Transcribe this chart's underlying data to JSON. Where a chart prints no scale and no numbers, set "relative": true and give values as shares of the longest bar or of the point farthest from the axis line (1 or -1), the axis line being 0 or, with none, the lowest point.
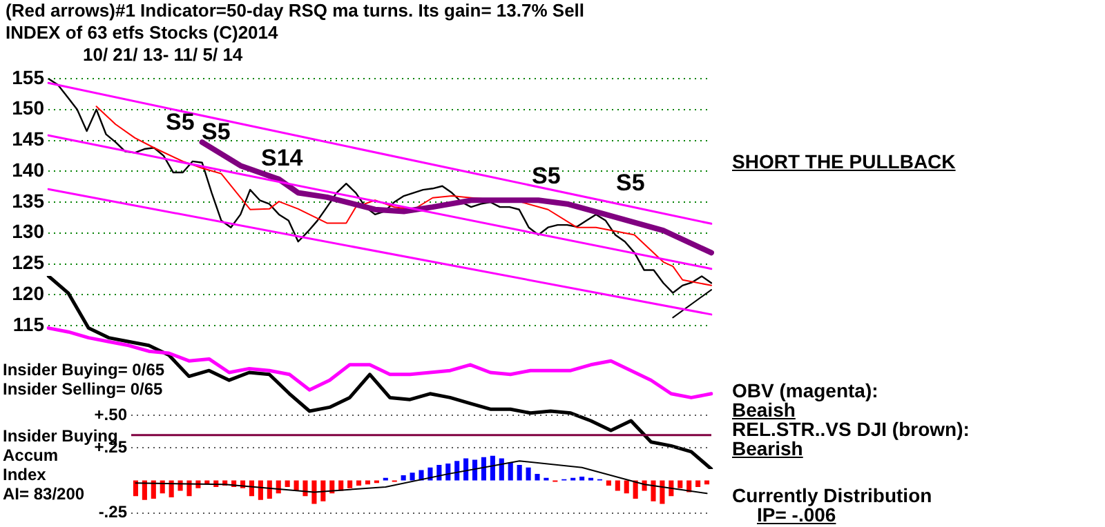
{
  "chart_data": [
    {
      "type": "line",
      "title": "(Red arrows)#1 Indicator=50-day RSQ ma turns. Its gain= 13.7% Sell",
      "subtitle": "INDEX of  63 etfs Stocks  (C)2014",
      "annotations": [
        "10/ 21/ 13- 11/ 5/ 14",
        "S5",
        "S5",
        "S14",
        "S5",
        "S5",
        "SHORT THE PULLBACK"
      ],
      "categories": [
        null,
        null,
        null,
        null,
        null,
        null,
        null,
        null,
        null,
        null,
        null,
        null,
        null,
        null,
        null,
        null,
        null,
        null,
        null,
        null,
        null,
        null,
        null,
        null,
        null,
        null,
        null,
        null,
        null,
        null,
        null,
        null,
        null,
        null,
        null,
        null,
        null,
        null,
        null,
        null,
        null,
        null,
        null,
        null,
        null,
        null,
        null,
        null,
        null,
        null,
        null,
        null,
        null,
        null,
        null,
        null,
        null,
        null,
        null,
        null,
        null,
        null,
        null,
        null,
        null,
        null,
        null,
        null,
        null,
        null
      ],
      "series": [
        {
          "color": "#ff00ff",
          "values": [
            154.3,
            null,
            null,
            null,
            null,
            null,
            null,
            null,
            null,
            null,
            null,
            null,
            null,
            null,
            null,
            null,
            null,
            null,
            null,
            null,
            null,
            null,
            null,
            null,
            null,
            null,
            null,
            null,
            null,
            null,
            null,
            null,
            null,
            null,
            null,
            null,
            null,
            null,
            null,
            null,
            null,
            null,
            null,
            null,
            null,
            null,
            null,
            null,
            null,
            null,
            null,
            null,
            null,
            null,
            null,
            null,
            null,
            null,
            null,
            null,
            null,
            null,
            null,
            null,
            null,
            null,
            null,
            null,
            null,
            131.5
          ]
        },
        {
          "color": "#ff00ff",
          "values": [
            145.8,
            null,
            null,
            null,
            null,
            null,
            null,
            null,
            null,
            null,
            null,
            null,
            null,
            null,
            null,
            null,
            null,
            null,
            null,
            null,
            null,
            null,
            null,
            null,
            null,
            null,
            null,
            null,
            null,
            null,
            null,
            null,
            null,
            null,
            null,
            null,
            null,
            null,
            null,
            null,
            null,
            null,
            null,
            null,
            null,
            null,
            null,
            null,
            null,
            null,
            null,
            null,
            null,
            null,
            null,
            null,
            null,
            null,
            null,
            null,
            null,
            null,
            null,
            null,
            null,
            null,
            null,
            null,
            null,
            124.2
          ]
        },
        {
          "color": "#ff00ff",
          "values": [
            137.1,
            null,
            null,
            null,
            null,
            null,
            null,
            null,
            null,
            null,
            null,
            null,
            null,
            null,
            null,
            null,
            null,
            null,
            null,
            null,
            null,
            null,
            null,
            null,
            null,
            null,
            null,
            null,
            null,
            null,
            null,
            null,
            null,
            null,
            null,
            null,
            null,
            null,
            null,
            null,
            null,
            null,
            null,
            null,
            null,
            null,
            null,
            null,
            null,
            null,
            null,
            null,
            null,
            null,
            null,
            null,
            null,
            null,
            null,
            null,
            null,
            null,
            null,
            null,
            null,
            null,
            null,
            null,
            null,
            116.8
          ]
        },
        {
          "color": "#800080",
          "values": [
            null,
            null,
            null,
            null,
            null,
            null,
            null,
            null,
            null,
            null,
            null,
            null,
            null,
            null,
            null,
            null,
            144.7,
            null,
            null,
            null,
            140.9,
            null,
            null,
            null,
            138.7,
            null,
            136.5,
            null,
            null,
            135.8,
            null,
            null,
            null,
            null,
            133.8,
            null,
            null,
            133.5,
            null,
            null,
            134.2,
            null,
            null,
            null,
            135.3,
            null,
            null,
            null,
            null,
            null,
            null,
            135.3,
            null,
            null,
            134.7,
            null,
            null,
            null,
            133,
            null,
            null,
            null,
            null,
            null,
            130.4,
            null,
            null,
            null,
            null,
            126.8
          ]
        },
        {
          "color": "#ff0000",
          "values": [
            null,
            null,
            null,
            null,
            null,
            150.5,
            null,
            147.6,
            null,
            145.4,
            null,
            143.8,
            null,
            null,
            141.6,
            null,
            140.5,
            null,
            139.6,
            null,
            null,
            133.8,
            null,
            133.9,
            135.1,
            null,
            133.9,
            null,
            null,
            131.6,
            null,
            131.6,
            134.2,
            null,
            135.3,
            null,
            134.2,
            null,
            133.8,
            null,
            135.7,
            null,
            136,
            null,
            135.7,
            null,
            null,
            null,
            null,
            135.1,
            null,
            null,
            133.8,
            null,
            null,
            130.9,
            null,
            130.9,
            null,
            null,
            null,
            129.7,
            null,
            null,
            125.3,
            124.6,
            122.4,
            null,
            null,
            121.5
          ]
        },
        {
          "color": "#000000",
          "values": [
            155,
            154,
            152,
            150,
            146.5,
            150,
            146,
            144.7,
            143.2,
            143,
            143.6,
            143.8,
            142.5,
            139.8,
            139.8,
            141.6,
            141.4,
            136.5,
            132,
            130.9,
            133,
            137,
            135.3,
            134.7,
            133,
            132,
            128.6,
            130.2,
            132,
            134.2,
            136.5,
            138,
            136.5,
            134.2,
            133,
            133.5,
            135,
            136,
            136.5,
            137,
            137.2,
            137.6,
            136.5,
            135,
            134.2,
            134.7,
            135,
            134.2,
            134.2,
            133.8,
            130.9,
            129.7,
            130.9,
            131.3,
            131.3,
            131,
            132,
            133,
            132,
            129.7,
            128.6,
            126.8,
            124,
            124,
            121.9,
            120.3,
            121.5,
            122,
            123,
            121.9
          ]
        },
        {
          "color": "#000000",
          "values": [
            null,
            null,
            null,
            null,
            null,
            null,
            null,
            null,
            null,
            null,
            null,
            null,
            null,
            null,
            null,
            null,
            null,
            null,
            null,
            null,
            null,
            null,
            null,
            null,
            null,
            null,
            null,
            null,
            null,
            null,
            null,
            null,
            null,
            null,
            null,
            null,
            null,
            null,
            null,
            null,
            null,
            null,
            null,
            null,
            null,
            null,
            null,
            null,
            null,
            null,
            null,
            null,
            null,
            null,
            null,
            null,
            null,
            null,
            null,
            null,
            null,
            null,
            null,
            null,
            null,
            116.3,
            null,
            null,
            null,
            120.8
          ]
        }
      ],
      "ylim": [
        115,
        155
      ],
      "yticks": [
        115,
        120,
        125,
        130,
        135,
        140,
        145,
        150,
        155
      ],
      "grid": "y",
      "tick_labels": "y"
    },
    {
      "type": "line",
      "relative": true,
      "annotations": [
        "Insider Buying= 0/65",
        "Insider Selling= 0/65",
        "OBV (magenta):",
        "Beaish",
        "REL.STR..VS DJI (brown):",
        "Bearish"
      ],
      "categories": [
        null,
        null,
        null,
        null,
        null,
        null,
        null,
        null,
        null,
        null,
        null,
        null,
        null,
        null,
        null,
        null,
        null,
        null,
        null,
        null,
        null,
        null,
        null,
        null,
        null,
        null,
        null,
        null,
        null,
        null,
        null,
        null,
        null,
        null
      ],
      "series": [
        {
          "color": "#ff00ff",
          "values": [
            0.73,
            0.71,
            0.68,
            0.66,
            0.64,
            0.61,
            0.6,
            0.56,
            0.57,
            0.5,
            0.52,
            0.51,
            0.49,
            0.41,
            0.46,
            0.54,
            0.54,
            0.49,
            0.49,
            0.5,
            0.51,
            0.54,
            0.5,
            0.49,
            0.51,
            0.51,
            0.51,
            0.54,
            0.56,
            0.51,
            0.46,
            0.39,
            0.37,
            0.39
          ]
        },
        {
          "color": "#000000",
          "values": [
            1,
            0.91,
            0.73,
            0.68,
            0.66,
            0.64,
            0.59,
            0.48,
            0.51,
            0.46,
            0.5,
            0.49,
            0.39,
            0.3,
            0.32,
            0.37,
            0.49,
            0.37,
            0.36,
            0.39,
            0.37,
            0.34,
            0.31,
            0.31,
            0.29,
            0.3,
            0.29,
            0.25,
            0.2,
            0.25,
            0.14,
            0.12,
            0.09,
            0
          ]
        }
      ]
    },
    {
      "type": "bar",
      "annotations": [
        "Insider Buying",
        "Accum",
        "Index",
        "AI= 83/200",
        "Currently Distribution",
        "IP= -.006"
      ],
      "categories": [
        null,
        null,
        null,
        null,
        null,
        null,
        null,
        null,
        null,
        null,
        null,
        null,
        null,
        null,
        null,
        null,
        null,
        null,
        null,
        null,
        null,
        null,
        null,
        null,
        null,
        null,
        null,
        null,
        null,
        null,
        null,
        null,
        null,
        null,
        null,
        null,
        null,
        null,
        null,
        null,
        null,
        null,
        null,
        null,
        null,
        null,
        null,
        null,
        null,
        null,
        null,
        null,
        null,
        null,
        null,
        null,
        null,
        null,
        null,
        null,
        null,
        null,
        null,
        null,
        null
      ],
      "series": [
        {
          "colors": [
            "#ff0000",
            "#ff0000",
            "#ff0000",
            "#ff0000",
            "#ff0000",
            "#ff0000",
            "#ff0000",
            "#ff0000",
            "#ff0000",
            "#ff0000",
            "#ff0000",
            "#ff0000",
            "#ff0000",
            "#ff0000",
            "#ff0000",
            "#ff0000",
            "#ff0000",
            "#ff0000",
            "#ff0000",
            "#ff0000",
            "#ff0000",
            "#ff0000",
            "#ff0000",
            "#ff0000",
            "#ff0000",
            "#ff0000",
            "#ff0000",
            "#ff0000",
            "#0000ff",
            "#ff0000",
            "#0000ff",
            "#0000ff",
            "#0000ff",
            "#0000ff",
            "#0000ff",
            "#0000ff",
            "#0000ff",
            "#0000ff",
            "#0000ff",
            "#0000ff",
            "#0000ff",
            "#0000ff",
            "#0000ff",
            "#0000ff",
            "#0000ff",
            "#0000ff",
            "#0000ff",
            "#ff0000",
            "#0000ff",
            "#0000ff",
            "#0000ff",
            "#0000ff",
            "#0000ff",
            "#ff0000",
            "#ff0000",
            "#ff0000",
            "#ff0000",
            "#ff0000",
            "#ff0000",
            "#ff0000",
            "#ff0000",
            "#ff0000",
            "#ff0000",
            "#ff0000",
            "#ff0000"
          ],
          "values": [
            -0.12,
            -0.15,
            -0.14,
            -0.1,
            -0.13,
            -0.08,
            -0.12,
            -0.06,
            -0.03,
            -0.05,
            -0.04,
            -0.05,
            -0.06,
            -0.12,
            -0.15,
            -0.14,
            -0.1,
            -0.05,
            -0.08,
            -0.12,
            -0.18,
            -0.16,
            -0.1,
            -0.08,
            -0.06,
            -0.04,
            -0.03,
            -0.02,
            0.02,
            -0.01,
            0.04,
            0.06,
            0.08,
            0.1,
            0.12,
            0.13,
            0.15,
            0.17,
            0.16,
            0.18,
            0.19,
            0.17,
            0.14,
            0.12,
            0.1,
            0.05,
            0.02,
            -0.01,
            0.01,
            0.02,
            0.03,
            0.02,
            0.01,
            -0.04,
            -0.08,
            -0.1,
            -0.14,
            -0.08,
            -0.16,
            -0.18,
            -0.12,
            -0.06,
            -0.09,
            -0.05,
            -0.03
          ]
        },
        {
          "type": "line",
          "color": "#000000",
          "values": [
            -0.02,
            null,
            null,
            null,
            null,
            null,
            null,
            null,
            null,
            null,
            -0.03,
            null,
            null,
            null,
            null,
            null,
            null,
            null,
            null,
            null,
            -0.09,
            null,
            null,
            null,
            null,
            null,
            null,
            null,
            -0.05,
            null,
            null,
            null,
            null,
            null,
            null,
            0.05,
            null,
            null,
            null,
            null,
            null,
            null,
            null,
            0.15,
            null,
            null,
            null,
            null,
            null,
            null,
            0.1,
            null,
            null,
            null,
            null,
            null,
            null,
            -0.03,
            null,
            null,
            null,
            null,
            null,
            null,
            -0.1
          ]
        }
      ],
      "ylim": [
        -0.25,
        0.5
      ],
      "yticks": [
        {
          "value": 0.5,
          "label": "+.50"
        },
        {
          "value": 0.25,
          "label": "+.25"
        },
        {
          "value": -0.25,
          "label": "-.25"
        }
      ],
      "grid": "y",
      "tick_labels": "y",
      "ref_lines": [
        {
          "axis": "y",
          "value": 0.35,
          "color": "#800040"
        }
      ]
    }
  ]
}
